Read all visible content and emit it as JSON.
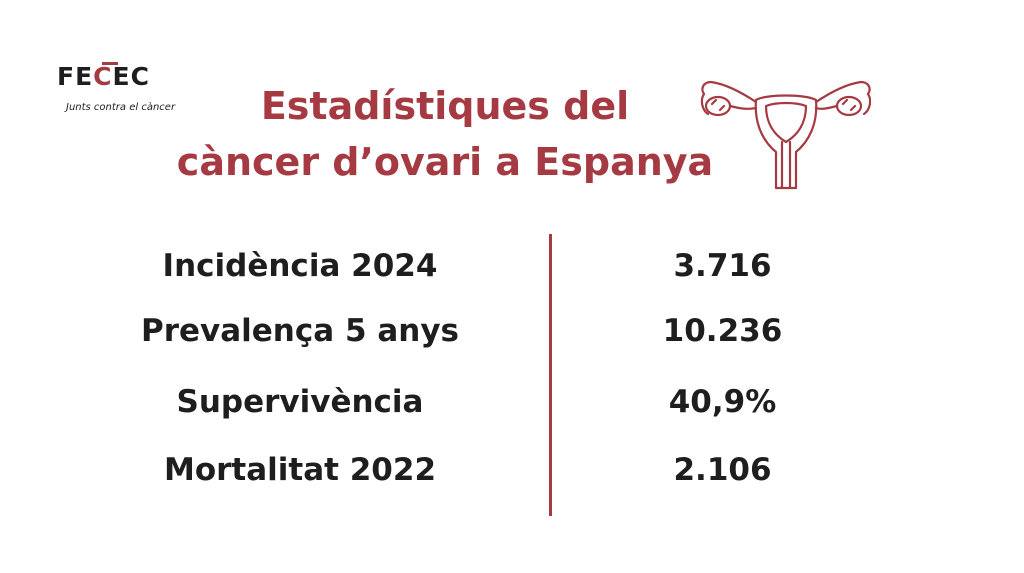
{
  "logo": {
    "name_part1": "FE",
    "name_part2": "C",
    "name_part3": "EC",
    "tagline": "Junts contra el càncer",
    "icon": "fecec-logo"
  },
  "title": {
    "line1": "Estadístiques del",
    "line2": "càncer d’ovari a Espanya"
  },
  "illustration": {
    "icon": "uterus-icon"
  },
  "stats": [
    {
      "label": "Incidència 2024",
      "value": "3.716"
    },
    {
      "label": "Prevalença 5 anys",
      "value": "10.236"
    },
    {
      "label": "Supervivència",
      "value": "40,9%"
    },
    {
      "label": "Mortalitat 2022",
      "value": "2.106"
    }
  ],
  "colors": {
    "accent": "#a53a42",
    "text": "#1e1e1e",
    "background": "#ffffff"
  }
}
